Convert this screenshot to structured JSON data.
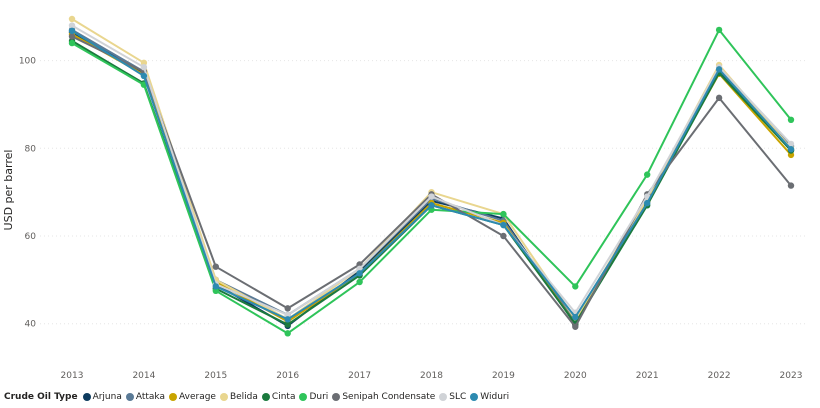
{
  "chart_data": {
    "type": "line",
    "ylabel": "USD per barrel",
    "xlabel": "",
    "ylim": [
      34,
      112
    ],
    "yticks": [
      40,
      60,
      80,
      100
    ],
    "grid": true,
    "legend_title": "Crude Oil Type",
    "legend_position": "bottom-left",
    "categories": [
      "2013",
      "2014",
      "2015",
      "2016",
      "2017",
      "2018",
      "2019",
      "2020",
      "2021",
      "2022",
      "2023"
    ],
    "series": [
      {
        "name": "Arjuna",
        "color": "#0d3b5e",
        "values": [
          106.5,
          97.0,
          49.0,
          39.5,
          52.0,
          68.0,
          64.0,
          39.8,
          68.0,
          97.5,
          79.5
        ]
      },
      {
        "name": "Attaka",
        "color": "#5a7a96",
        "values": [
          107.0,
          97.5,
          50.0,
          42.0,
          52.5,
          68.5,
          63.5,
          40.5,
          68.5,
          98.0,
          80.5
        ]
      },
      {
        "name": "Average",
        "color": "#c8a400",
        "values": [
          106.0,
          96.8,
          49.5,
          40.5,
          51.5,
          67.5,
          63.0,
          40.0,
          67.8,
          97.0,
          78.5
        ]
      },
      {
        "name": "Belida",
        "color": "#e9d68f",
        "values": [
          109.5,
          99.5,
          50.0,
          41.0,
          52.5,
          70.0,
          65.0,
          41.0,
          68.5,
          99.0,
          80.0
        ]
      },
      {
        "name": "Cinta",
        "color": "#1b7a3e",
        "values": [
          104.5,
          94.8,
          48.0,
          39.8,
          51.0,
          67.0,
          62.5,
          40.0,
          67.0,
          97.2,
          79.5
        ]
      },
      {
        "name": "Duri",
        "color": "#2fc45a",
        "values": [
          104.0,
          94.5,
          47.5,
          37.8,
          49.5,
          66.0,
          65.0,
          48.5,
          74.0,
          107.0,
          86.5
        ]
      },
      {
        "name": "Senipah Condensate",
        "color": "#6b6e73",
        "values": [
          105.5,
          97.5,
          53.0,
          43.5,
          53.5,
          69.5,
          60.0,
          39.3,
          69.5,
          91.5,
          71.5
        ]
      },
      {
        "name": "SLC",
        "color": "#d0d3d7",
        "values": [
          108.0,
          98.5,
          49.0,
          42.0,
          52.5,
          69.0,
          62.5,
          42.5,
          69.0,
          98.5,
          81.0
        ]
      },
      {
        "name": "Widuri",
        "color": "#2d8ab0",
        "values": [
          106.8,
          96.5,
          48.5,
          41.0,
          51.5,
          67.0,
          62.5,
          41.5,
          67.5,
          98.0,
          79.8
        ]
      }
    ]
  }
}
